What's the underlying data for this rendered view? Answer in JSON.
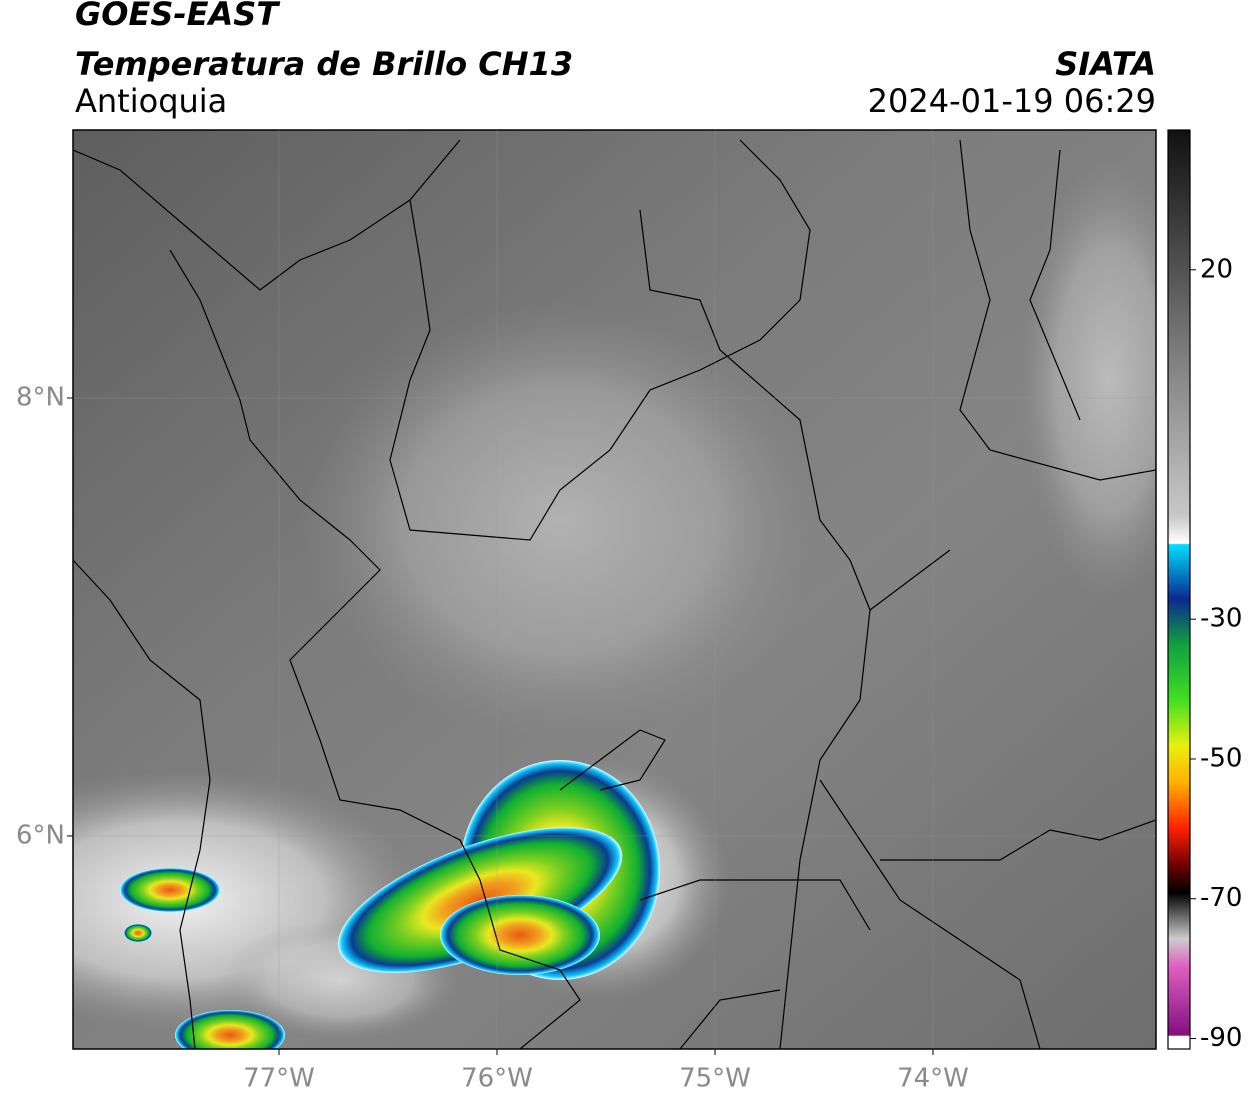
{
  "header": {
    "title": "GOES-EAST",
    "subtitle": "Temperatura de Brillo CH13",
    "region": "Antioquia",
    "source": "SIATA",
    "datetime": "2024-01-19 06:29"
  },
  "map": {
    "xlim": [
      -77.945,
      -72.977
    ],
    "ylim": [
      5.027,
      9.224
    ],
    "xticks": [
      {
        "value": -77,
        "label": "77°W"
      },
      {
        "value": -76,
        "label": "76°W"
      },
      {
        "value": -75,
        "label": "75°W"
      },
      {
        "value": -74,
        "label": "74°W"
      }
    ],
    "yticks": [
      {
        "value": 6,
        "label": "6°N"
      },
      {
        "value": 8,
        "label": "8°N"
      }
    ]
  },
  "colorbar": {
    "lim": [
      -91.5,
      40
    ],
    "ticks": [
      20,
      -30,
      -50,
      -70,
      -90
    ]
  }
}
